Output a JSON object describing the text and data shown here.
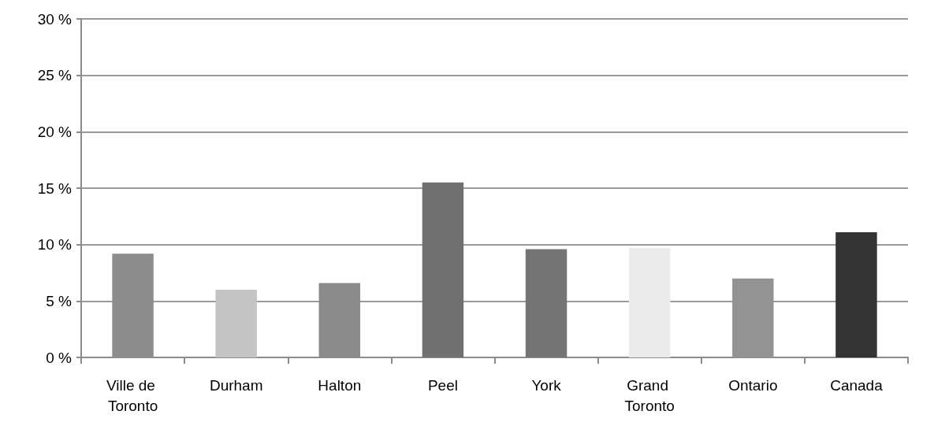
{
  "chart_data": {
    "type": "bar",
    "categories": [
      "Ville de Toronto",
      "Durham",
      "Halton",
      "Peel",
      "York",
      "Grand Toronto",
      "Ontario",
      "Canada"
    ],
    "values": [
      9.2,
      6.0,
      6.6,
      15.5,
      9.6,
      9.7,
      7.0,
      11.1
    ],
    "colors": [
      "#8c8c8c",
      "#c4c4c4",
      "#8a8a8a",
      "#707070",
      "#747474",
      "#ebebeb",
      "#939393",
      "#333333"
    ],
    "ylim": [
      0,
      30
    ],
    "yticks": [
      {
        "value": 0,
        "label": "0 %"
      },
      {
        "value": 5,
        "label": "5 %"
      },
      {
        "value": 10,
        "label": "10 %"
      },
      {
        "value": 15,
        "label": "15 %"
      },
      {
        "value": 20,
        "label": "20 %"
      },
      {
        "value": 25,
        "label": "25 %"
      },
      {
        "value": 30,
        "label": "30 %"
      }
    ],
    "grid": "y"
  }
}
